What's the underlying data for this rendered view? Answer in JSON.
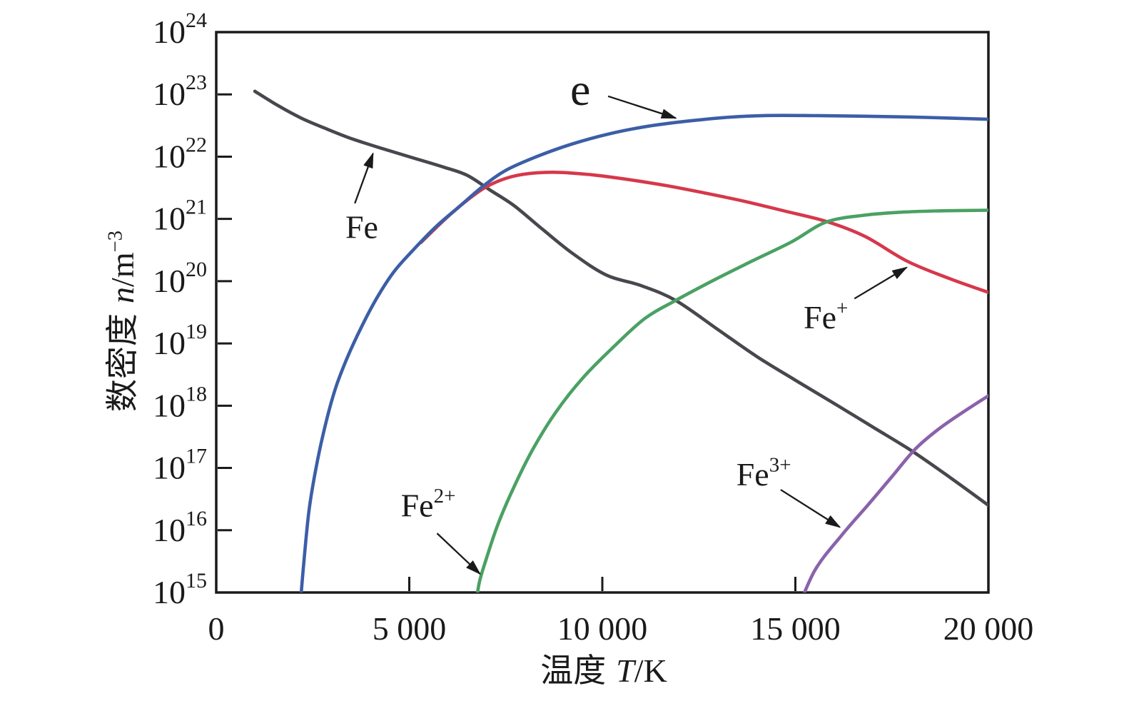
{
  "figure": {
    "background": "#ffffff",
    "ink_color": "#1a1a1a"
  },
  "chart_data": {
    "type": "line",
    "title": "",
    "xlabel": "温度 T/K",
    "ylabel": "数密度 n/m⁻³",
    "xlabel_parts": {
      "cjk": "温度",
      "var": "T",
      "rest": "/K"
    },
    "ylabel_parts": {
      "cjk": "数密度",
      "var": "n",
      "rest": "/m",
      "sup": "−3"
    },
    "grid": "off",
    "legend": "none (in-plot labels with arrows)",
    "x_axis": {
      "min": 0,
      "max": 20000,
      "ticks": [
        {
          "value": 0,
          "label": "0"
        },
        {
          "value": 5000,
          "label": "5 000"
        },
        {
          "value": 10000,
          "label": "10 000"
        },
        {
          "value": 15000,
          "label": "15 000"
        },
        {
          "value": 20000,
          "label": "20 000"
        }
      ]
    },
    "y_axis": {
      "scale": "log10",
      "min_exp": 15,
      "max_exp": 24,
      "tick_base": "10",
      "tick_exponents": [
        15,
        16,
        17,
        18,
        19,
        20,
        21,
        22,
        23,
        24
      ]
    },
    "series_note": "points are [temperature_K, log10(number density n per m^3)]",
    "series": [
      {
        "id": "fe",
        "label": "Fe",
        "color": "#47474d",
        "points": [
          [
            1000,
            23.05
          ],
          [
            1600,
            22.82
          ],
          [
            2200,
            22.62
          ],
          [
            2800,
            22.46
          ],
          [
            3500,
            22.29
          ],
          [
            4300,
            22.13
          ],
          [
            5100,
            21.98
          ],
          [
            5900,
            21.83
          ],
          [
            6500,
            21.7
          ],
          [
            7100,
            21.46
          ],
          [
            7700,
            21.22
          ],
          [
            8400,
            20.86
          ],
          [
            9200,
            20.46
          ],
          [
            10100,
            20.1
          ],
          [
            11000,
            19.93
          ],
          [
            11900,
            19.69
          ],
          [
            13000,
            19.22
          ],
          [
            14000,
            18.79
          ],
          [
            15000,
            18.41
          ],
          [
            16100,
            18.0
          ],
          [
            17000,
            17.66
          ],
          [
            18000,
            17.28
          ],
          [
            19000,
            16.85
          ],
          [
            20000,
            16.4
          ]
        ]
      },
      {
        "id": "fe-plus",
        "label": "Fe⁺",
        "color": "#d6384b",
        "points": [
          [
            5300,
            20.62
          ],
          [
            5900,
            20.98
          ],
          [
            6500,
            21.3
          ],
          [
            7100,
            21.55
          ],
          [
            7800,
            21.7
          ],
          [
            8700,
            21.75
          ],
          [
            9700,
            21.71
          ],
          [
            10700,
            21.63
          ],
          [
            11700,
            21.53
          ],
          [
            12700,
            21.41
          ],
          [
            13700,
            21.28
          ],
          [
            14700,
            21.13
          ],
          [
            15800,
            20.96
          ],
          [
            16800,
            20.72
          ],
          [
            17900,
            20.32
          ],
          [
            19000,
            20.04
          ],
          [
            20000,
            19.82
          ]
        ]
      },
      {
        "id": "fe2-plus",
        "label": "Fe²⁺",
        "color": "#4aa163",
        "points": [
          [
            6700,
            14.6
          ],
          [
            6800,
            15.12
          ],
          [
            7000,
            15.55
          ],
          [
            7300,
            16.1
          ],
          [
            7700,
            16.68
          ],
          [
            8200,
            17.3
          ],
          [
            8800,
            17.9
          ],
          [
            9500,
            18.45
          ],
          [
            10300,
            18.95
          ],
          [
            11100,
            19.4
          ],
          [
            11900,
            19.69
          ],
          [
            12900,
            20.02
          ],
          [
            13900,
            20.33
          ],
          [
            14900,
            20.63
          ],
          [
            15800,
            20.95
          ],
          [
            16800,
            21.06
          ],
          [
            17800,
            21.11
          ],
          [
            18800,
            21.13
          ],
          [
            20000,
            21.14
          ]
        ]
      },
      {
        "id": "fe3-plus",
        "label": "Fe³⁺",
        "color": "#8a62ab",
        "points": [
          [
            14980,
            14.6
          ],
          [
            15500,
            15.35
          ],
          [
            16200,
            15.92
          ],
          [
            16900,
            16.42
          ],
          [
            17500,
            16.86
          ],
          [
            18100,
            17.3
          ],
          [
            18700,
            17.62
          ],
          [
            19350,
            17.9
          ],
          [
            20000,
            18.16
          ]
        ]
      },
      {
        "id": "e",
        "label": "e",
        "color": "#3c5ea7",
        "points": [
          [
            2150,
            14.6
          ],
          [
            2250,
            15.35
          ],
          [
            2400,
            16.3
          ],
          [
            2600,
            17.05
          ],
          [
            2850,
            17.75
          ],
          [
            3100,
            18.3
          ],
          [
            3400,
            18.78
          ],
          [
            3750,
            19.25
          ],
          [
            4150,
            19.72
          ],
          [
            4600,
            20.15
          ],
          [
            5100,
            20.5
          ],
          [
            5700,
            20.88
          ],
          [
            6300,
            21.2
          ],
          [
            6900,
            21.52
          ],
          [
            7500,
            21.78
          ],
          [
            8300,
            22.0
          ],
          [
            9200,
            22.2
          ],
          [
            10200,
            22.37
          ],
          [
            11200,
            22.49
          ],
          [
            12200,
            22.57
          ],
          [
            13200,
            22.63
          ],
          [
            14200,
            22.66
          ],
          [
            15400,
            22.66
          ],
          [
            16800,
            22.65
          ],
          [
            18400,
            22.63
          ],
          [
            20000,
            22.6
          ]
        ]
      }
    ],
    "annotations": [
      {
        "id": "e",
        "base": "e",
        "sup": "",
        "size": 64,
        "label_t": 9430,
        "label_logn": 23.08,
        "arrow": {
          "t1": 10150,
          "logn1": 22.97,
          "t2": 11900,
          "logn2": 22.62
        }
      },
      {
        "id": "fe",
        "base": "Fe",
        "sup": "",
        "size": 46,
        "label_t": 3770,
        "label_logn": 20.87,
        "arrow": {
          "t1": 3590,
          "logn1": 21.25,
          "t2": 4060,
          "logn2": 22.05
        }
      },
      {
        "id": "fe-plus",
        "base": "Fe",
        "sup": "+",
        "size": 46,
        "label_t": 15790,
        "label_logn": 19.42,
        "arrow": {
          "t1": 16530,
          "logn1": 19.72,
          "t2": 17880,
          "logn2": 20.22
        }
      },
      {
        "id": "fe2-plus",
        "base": "Fe",
        "sup": "2+",
        "size": 46,
        "label_t": 5490,
        "label_logn": 16.4,
        "arrow": {
          "t1": 5720,
          "logn1": 15.95,
          "t2": 6830,
          "logn2": 15.3
        }
      },
      {
        "id": "fe3-plus",
        "base": "Fe",
        "sup": "3+",
        "size": 46,
        "label_t": 14180,
        "label_logn": 16.9,
        "arrow": {
          "t1": 14620,
          "logn1": 16.65,
          "t2": 16150,
          "logn2": 16.05
        }
      }
    ]
  }
}
